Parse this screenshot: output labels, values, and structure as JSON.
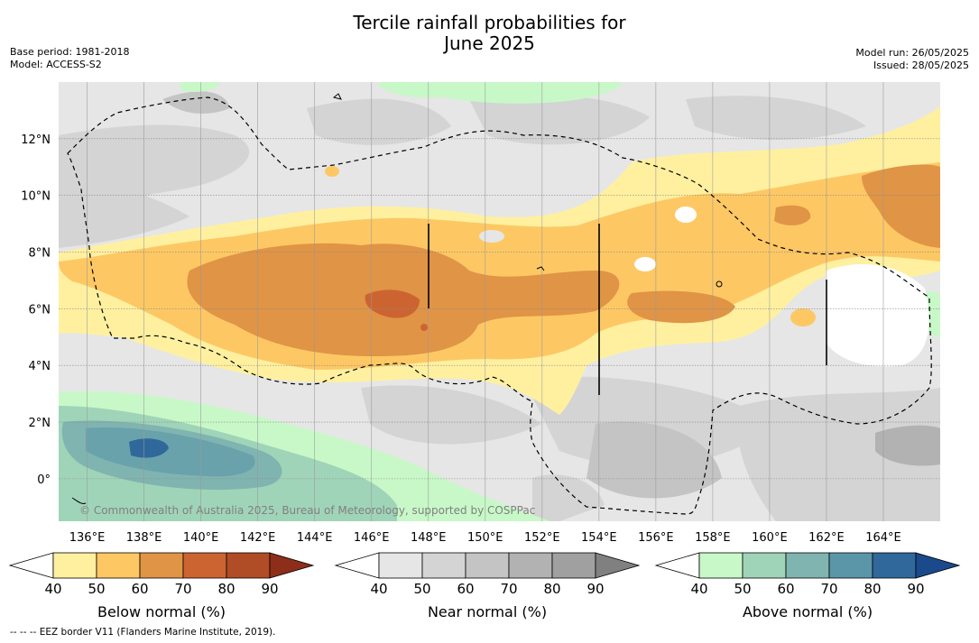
{
  "title_line1": "Tercile rainfall probabilities for",
  "title_line2": "June 2025",
  "meta_left": {
    "base_period": "Base period: 1981-2018",
    "model": "Model: ACCESS-S2"
  },
  "meta_right": {
    "model_run": "Model run: 26/05/2025",
    "issued": "Issued: 28/05/2025"
  },
  "map": {
    "lon_ticks": [
      "136°E",
      "138°E",
      "140°E",
      "142°E",
      "144°E",
      "146°E",
      "148°E",
      "150°E",
      "152°E",
      "154°E",
      "156°E",
      "158°E",
      "160°E",
      "162°E",
      "164°E"
    ],
    "lat_ticks": [
      "12°N",
      "10°N",
      "8°N",
      "6°N",
      "4°N",
      "2°N",
      "0°"
    ],
    "copyright": "© Commonwealth of Australia 2025, Bureau of Meteorology, supported by COSPPac"
  },
  "colorbars": [
    {
      "label": "Below normal (%)",
      "ticks": [
        "40",
        "50",
        "60",
        "70",
        "80",
        "90"
      ],
      "colors": [
        "#ffffff",
        "#fff0a0",
        "#fdc864",
        "#e09446",
        "#cc6432",
        "#b04c26",
        "#8c2e1a"
      ]
    },
    {
      "label": "Near normal (%)",
      "ticks": [
        "40",
        "50",
        "60",
        "70",
        "80",
        "90"
      ],
      "colors": [
        "#ffffff",
        "#e6e6e6",
        "#d4d4d4",
        "#c4c4c4",
        "#b2b2b2",
        "#a0a0a0",
        "#808080"
      ]
    },
    {
      "label": "Above normal (%)",
      "ticks": [
        "40",
        "50",
        "60",
        "70",
        "80",
        "90"
      ],
      "colors": [
        "#ffffff",
        "#c8f8c8",
        "#a0d4b8",
        "#80b4b0",
        "#5a96a8",
        "#30689c",
        "#1a4a8c"
      ]
    }
  ],
  "footnote": "-- -- -- EEZ border V11 (Flanders Marine Institute, 2019)."
}
